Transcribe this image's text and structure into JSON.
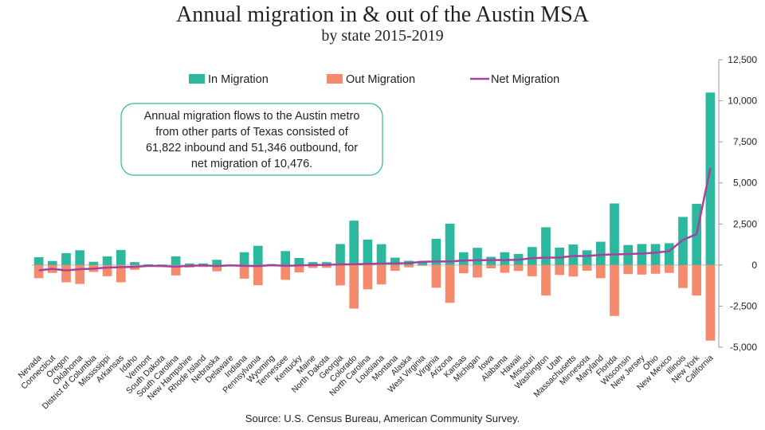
{
  "chart_data": {
    "type": "bar-line",
    "title": "Annual migration in & out of the Austin MSA",
    "subtitle": "by state 2015-2019",
    "source": "Source:  U.S. Census Bureau, American Community Survey.",
    "annotation": [
      "Annual migration flows to the Austin metro",
      "from other parts of Texas consisted of",
      "61,822 inbound and 51,346 outbound, for",
      "net migration of 10,476."
    ],
    "categories": [
      "Nevada",
      "Connecticut",
      "Oregon",
      "Oklahoma",
      "District of Columbia",
      "Mississippi",
      "Arkansas",
      "Idaho",
      "Vermont",
      "South Dakota",
      "South Carolina",
      "New Hampshire",
      "Rhode Island",
      "Nebraska",
      "Delaware",
      "Indiana",
      "Pennsylvania",
      "Wyoming",
      "Tennessee",
      "Kentucky",
      "Maine",
      "North Dakota",
      "Georgia",
      "Colorado",
      "North Carolina",
      "Louisiana",
      "Montana",
      "Alaska",
      "West Virginia",
      "Virginia",
      "Arizona",
      "Kansas",
      "Michigan",
      "Iowa",
      "Alabama",
      "Hawaii",
      "Missouri",
      "Washington",
      "Utah",
      "Massachusetts",
      "Minnesota",
      "Maryland",
      "Florida",
      "Wisconsin",
      "New Jersey",
      "Ohio",
      "New Mexico",
      "Illinois",
      "New York",
      "California"
    ],
    "series": [
      {
        "name": "In Migration",
        "type": "bar",
        "color": "#2bb89e",
        "values": [
          480,
          250,
          720,
          900,
          200,
          530,
          920,
          180,
          50,
          40,
          530,
          100,
          100,
          320,
          30,
          780,
          1170,
          60,
          850,
          430,
          180,
          180,
          1280,
          2700,
          1550,
          1270,
          450,
          260,
          250,
          1600,
          2520,
          780,
          1050,
          500,
          780,
          680,
          1100,
          2300,
          1060,
          1250,
          900,
          1420,
          3750,
          1220,
          1280,
          1280,
          1330,
          2930,
          3730,
          10500
        ]
      },
      {
        "name": "Out Migration",
        "type": "bar",
        "color": "#f58b6c",
        "values": [
          -800,
          -480,
          -1050,
          -1150,
          -420,
          -680,
          -1050,
          -290,
          -100,
          -100,
          -630,
          -150,
          -120,
          -380,
          -50,
          -830,
          -1230,
          -70,
          -900,
          -450,
          -180,
          -170,
          -1240,
          -2650,
          -1480,
          -1180,
          -350,
          -140,
          -50,
          -1380,
          -2300,
          -500,
          -760,
          -200,
          -470,
          -360,
          -680,
          -1850,
          -600,
          -700,
          -350,
          -800,
          -3100,
          -550,
          -580,
          -530,
          -480,
          -1400,
          -1850,
          -4600
        ]
      },
      {
        "name": "Net Migration",
        "type": "line",
        "color": "#a8419e",
        "values": [
          -320,
          -230,
          -330,
          -250,
          -220,
          -150,
          -130,
          -110,
          -50,
          -60,
          -100,
          -50,
          -20,
          -60,
          -20,
          -50,
          -60,
          -10,
          -50,
          -20,
          0,
          10,
          40,
          50,
          70,
          90,
          100,
          120,
          200,
          220,
          220,
          280,
          290,
          300,
          310,
          320,
          420,
          450,
          460,
          550,
          550,
          620,
          650,
          670,
          700,
          750,
          850,
          1530,
          1880,
          5900
        ]
      }
    ],
    "ylim": [
      -5000,
      12500
    ],
    "yticks": [
      {
        "value": -5000,
        "label": "-5,000"
      },
      {
        "value": -2500,
        "label": "-2,500"
      },
      0,
      {
        "value": 2500,
        "label": "2,500"
      },
      {
        "value": 5000,
        "label": "5,000"
      },
      {
        "value": 7500,
        "label": "7,500"
      },
      {
        "value": 10000,
        "label": "10,000"
      },
      {
        "value": 12500,
        "label": "12,500"
      }
    ]
  }
}
